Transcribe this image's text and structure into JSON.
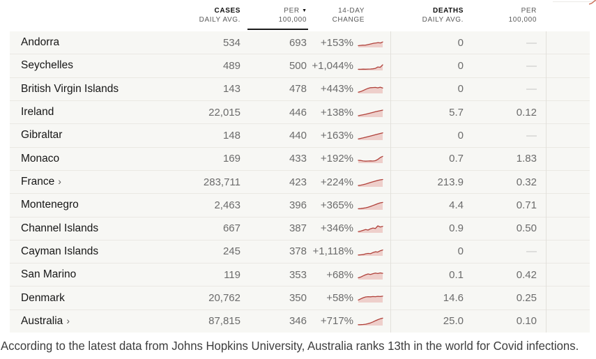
{
  "table": {
    "headers": {
      "cases_top": "CASES",
      "cases_sub": "DAILY AVG.",
      "per_top": "PER",
      "per_sub": "100,000",
      "sort_icon": "▼",
      "change_top": "14-DAY",
      "change_sub": "CHANGE",
      "deaths_top": "DEATHS",
      "deaths_sub": "DAILY AVG.",
      "deaths_per_top": "PER",
      "deaths_per_sub": "100,000",
      "sorted_column": "per_100k",
      "sort_direction": "descending"
    },
    "rows": [
      {
        "country": "Andorra",
        "arrow": "",
        "cases": "534",
        "per_100k": "693",
        "change": "+153%",
        "deaths": "0",
        "deaths_per_100k": "—",
        "spark": [
          18,
          22,
          25,
          24,
          30,
          36,
          44,
          50,
          54,
          58,
          54,
          66
        ]
      },
      {
        "country": "Seychelles",
        "arrow": "",
        "cases": "489",
        "per_100k": "500",
        "change": "+1,044%",
        "deaths": "0",
        "deaths_per_100k": "—",
        "spark": [
          10,
          10,
          12,
          11,
          13,
          14,
          16,
          22,
          40,
          36,
          68
        ]
      },
      {
        "country": "British Virgin Islands",
        "arrow": "",
        "cases": "143",
        "per_100k": "478",
        "change": "+443%",
        "deaths": "0",
        "deaths_per_100k": "—",
        "spark": [
          12,
          20,
          34,
          48,
          62,
          70,
          72,
          74,
          68,
          76,
          66
        ]
      },
      {
        "country": "Ireland",
        "arrow": "",
        "cases": "22,015",
        "per_100k": "446",
        "change": "+138%",
        "deaths": "5.7",
        "deaths_per_100k": "0.12",
        "spark": [
          14,
          20,
          26,
          33,
          41,
          49,
          57,
          65,
          73,
          80,
          86
        ]
      },
      {
        "country": "Gibraltar",
        "arrow": "",
        "cases": "148",
        "per_100k": "440",
        "change": "+163%",
        "deaths": "0",
        "deaths_per_100k": "—",
        "spark": [
          12,
          18,
          25,
          33,
          41,
          49,
          57,
          65,
          74,
          82,
          90
        ]
      },
      {
        "country": "Monaco",
        "arrow": "",
        "cases": "169",
        "per_100k": "433",
        "change": "+192%",
        "deaths": "0.7",
        "deaths_per_100k": "1.83",
        "spark": [
          32,
          30,
          24,
          21,
          23,
          25,
          23,
          27,
          44,
          68,
          84
        ]
      },
      {
        "country": "France",
        "arrow": "›",
        "cases": "283,711",
        "per_100k": "423",
        "change": "+224%",
        "deaths": "213.9",
        "deaths_per_100k": "0.32",
        "spark": [
          12,
          17,
          24,
          32,
          42,
          52,
          61,
          70,
          79,
          86,
          91
        ]
      },
      {
        "country": "Montenegro",
        "arrow": "",
        "cases": "2,463",
        "per_100k": "396",
        "change": "+365%",
        "deaths": "4.4",
        "deaths_per_100k": "0.71",
        "spark": [
          10,
          12,
          16,
          22,
          30,
          40,
          52,
          64,
          76,
          86,
          92
        ]
      },
      {
        "country": "Channel Islands",
        "arrow": "",
        "cases": "667",
        "per_100k": "387",
        "change": "+346%",
        "deaths": "0.9",
        "deaths_per_100k": "0.50",
        "spark": [
          12,
          18,
          28,
          38,
          32,
          48,
          58,
          52,
          86,
          72,
          80
        ]
      },
      {
        "country": "Cayman Islands",
        "arrow": "",
        "cases": "245",
        "per_100k": "378",
        "change": "+1,118%",
        "deaths": "0",
        "deaths_per_100k": "—",
        "spark": [
          6,
          9,
          12,
          22,
          27,
          24,
          38,
          48,
          45,
          62,
          72
        ]
      },
      {
        "country": "San Marino",
        "arrow": "",
        "cases": "119",
        "per_100k": "353",
        "change": "+68%",
        "deaths": "0.1",
        "deaths_per_100k": "0.42",
        "spark": [
          18,
          28,
          44,
          58,
          68,
          62,
          72,
          80,
          74,
          82,
          76
        ]
      },
      {
        "country": "Denmark",
        "arrow": "",
        "cases": "20,762",
        "per_100k": "350",
        "change": "+58%",
        "deaths": "14.6",
        "deaths_per_100k": "0.25",
        "spark": [
          28,
          44,
          58,
          68,
          72,
          70,
          74,
          72,
          76,
          74,
          78
        ]
      },
      {
        "country": "Australia",
        "arrow": "›",
        "cases": "87,815",
        "per_100k": "346",
        "change": "+717%",
        "deaths": "25.0",
        "deaths_per_100k": "0.10",
        "spark": [
          6,
          7,
          9,
          13,
          20,
          30,
          43,
          58,
          72,
          84,
          92
        ]
      }
    ]
  },
  "caption": "According to the latest data from Johns Hopkins University, Australia ranks 13th in the world for Covid infections.",
  "colors": {
    "spark_stroke": "#b0413a",
    "spark_fill": "#eeCFcb",
    "table_bg": "#f7f7f4",
    "row_separator": "#eae8e3",
    "sort_underline": "#1a1a1a"
  }
}
